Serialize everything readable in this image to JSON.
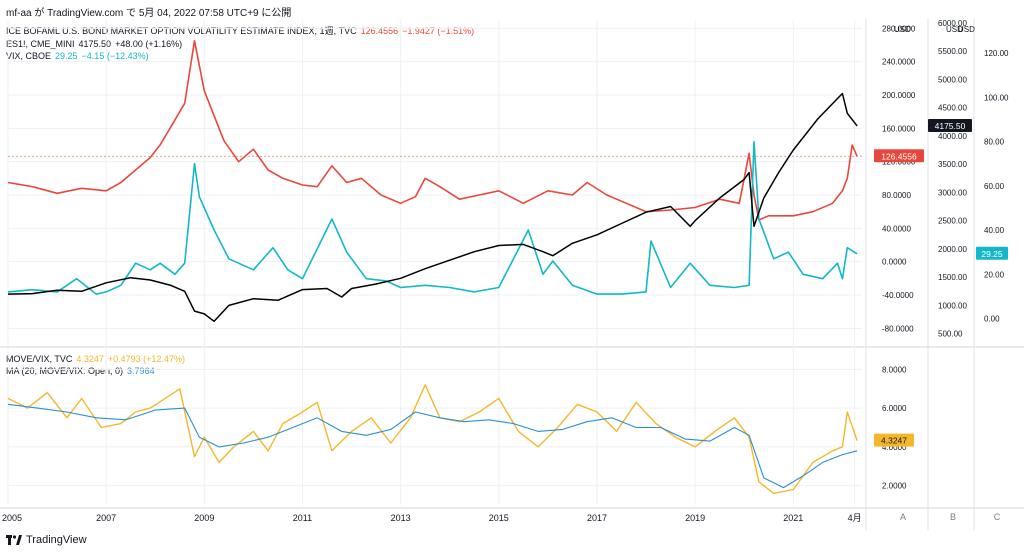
{
  "header": {
    "text": "mf-aa が TradingView.com で 5月 04, 2022 07:58 UTC+9 に公開"
  },
  "footer": {
    "brand": "TradingView"
  },
  "colors": {
    "move": "#e8483c",
    "es": "#000000",
    "vix": "#13b8c8",
    "ratio": "#f5b72a",
    "ma": "#2a8fd6",
    "grid": "#eef0f4",
    "axis": "#787b86"
  },
  "legend_top": [
    {
      "label": "ICE BOFAML U.S. BOND MARKET OPTION VOLATILITY ESTIMATE INDEX, 1週, TVC",
      "value": "126.4556",
      "change": "−1.9427 (−1.51%)",
      "color": "#e8483c"
    },
    {
      "label": "ES1!, CME_MINI",
      "value": "4175.50",
      "change": "+48.00 (+1.16%)",
      "color": "#131722"
    },
    {
      "label": "VIX, CBOE",
      "value": "29.25",
      "change": "−4.15 (−12.43%)",
      "color": "#13b8c8"
    }
  ],
  "legend_bottom": [
    {
      "label": "MOVE/VIX, TVC",
      "value": "4.3247",
      "change": "+0.4793 (+12.47%)",
      "color": "#f5b72a"
    },
    {
      "label": "MA (20, MOVE/VIX: Open, 0)",
      "value": "3.7964",
      "change": "",
      "color": "#2a8fd6"
    }
  ],
  "chart_data": [
    {
      "type": "line",
      "pane": "top",
      "x_ticks": [
        "2005",
        "2007",
        "2009",
        "2011",
        "2013",
        "2015",
        "2017",
        "2019",
        "2021",
        "4月"
      ],
      "scale_a": {
        "currency": "USD",
        "ticks": [
          "280.0000",
          "240.0000",
          "200.0000",
          "160.0000",
          "120.0000",
          "80.0000",
          "40.0000",
          "0.0000",
          "-40.0000",
          "-80.0000"
        ],
        "range": [
          -100,
          290
        ]
      },
      "scale_b": {
        "currency": "USD",
        "ticks": [
          "6000.00",
          "5500.00",
          "5000.00",
          "4500.00",
          "4000.00",
          "3500.00",
          "3000.00",
          "2500.00",
          "2000.00",
          "1500.00",
          "1000.00",
          "500.00"
        ],
        "range": [
          300,
          6050
        ]
      },
      "scale_c": {
        "currency": "USD",
        "ticks": [
          "120.00",
          "100.00",
          "80.00",
          "60.00",
          "40.00",
          "20.00",
          "0.00"
        ],
        "range": [
          -12,
          135
        ]
      },
      "price_labels": {
        "move": "126.4556",
        "es": "4175.50",
        "vix": "29.25"
      },
      "series": [
        {
          "name": "ICE BOFAML U.S. BOND MARKET OPTION VOLATILITY ESTIMATE INDEX",
          "scale": "a",
          "x": [
            2005.0,
            2005.5,
            2006.0,
            2006.5,
            2007.0,
            2007.3,
            2007.6,
            2007.9,
            2008.1,
            2008.3,
            2008.6,
            2008.8,
            2009.0,
            2009.2,
            2009.4,
            2009.7,
            2010.0,
            2010.3,
            2010.6,
            2011.0,
            2011.3,
            2011.6,
            2011.9,
            2012.2,
            2012.6,
            2013.0,
            2013.3,
            2013.5,
            2013.8,
            2014.2,
            2014.6,
            2015.0,
            2015.5,
            2016.0,
            2016.5,
            2016.8,
            2017.2,
            2017.6,
            2018.0,
            2018.5,
            2019.0,
            2019.5,
            2019.9,
            2020.1,
            2020.2,
            2020.3,
            2020.5,
            2020.8,
            2021.0,
            2021.4,
            2021.8,
            2022.0,
            2022.1,
            2022.2,
            2022.3
          ],
          "y": [
            95,
            90,
            82,
            88,
            85,
            95,
            110,
            125,
            140,
            160,
            190,
            265,
            205,
            175,
            145,
            120,
            135,
            110,
            100,
            92,
            90,
            115,
            95,
            100,
            80,
            70,
            78,
            100,
            90,
            75,
            80,
            85,
            70,
            85,
            80,
            95,
            80,
            70,
            60,
            62,
            65,
            75,
            70,
            130,
            80,
            50,
            55,
            55,
            55,
            60,
            70,
            85,
            100,
            140,
            126.4556
          ]
        },
        {
          "name": "ES1!, CME_MINI",
          "scale": "b",
          "x": [
            2005.0,
            2005.5,
            2006.0,
            2006.5,
            2007.0,
            2007.5,
            2007.9,
            2008.3,
            2008.6,
            2008.8,
            2009.0,
            2009.2,
            2009.5,
            2010.0,
            2010.5,
            2011.0,
            2011.5,
            2011.8,
            2012.0,
            2012.5,
            2013.0,
            2013.5,
            2014.0,
            2014.5,
            2015.0,
            2015.5,
            2015.9,
            2016.1,
            2016.5,
            2017.0,
            2017.5,
            2018.0,
            2018.5,
            2018.9,
            2019.0,
            2019.5,
            2020.0,
            2020.1,
            2020.2,
            2020.4,
            2020.7,
            2021.0,
            2021.5,
            2022.0,
            2022.1,
            2022.3
          ],
          "y": [
            1200,
            1210,
            1270,
            1250,
            1400,
            1490,
            1450,
            1360,
            1250,
            900,
            850,
            720,
            1000,
            1120,
            1090,
            1280,
            1300,
            1150,
            1300,
            1380,
            1480,
            1650,
            1800,
            1950,
            2060,
            2080,
            1950,
            1880,
            2100,
            2250,
            2450,
            2650,
            2750,
            2400,
            2500,
            2900,
            3230,
            3350,
            2400,
            2900,
            3350,
            3750,
            4300,
            4750,
            4400,
            4175.5
          ]
        },
        {
          "name": "VIX, CBOE",
          "scale": "c",
          "x": [
            2005.0,
            2005.5,
            2006.0,
            2006.4,
            2006.8,
            2007.0,
            2007.3,
            2007.6,
            2007.9,
            2008.1,
            2008.4,
            2008.6,
            2008.8,
            2008.9,
            2009.2,
            2009.5,
            2010.0,
            2010.4,
            2010.7,
            2011.0,
            2011.6,
            2011.9,
            2012.3,
            2012.7,
            2013.0,
            2013.5,
            2014.0,
            2014.5,
            2015.0,
            2015.6,
            2015.9,
            2016.1,
            2016.5,
            2017.0,
            2017.5,
            2018.0,
            2018.1,
            2018.5,
            2018.9,
            2019.3,
            2019.8,
            2020.1,
            2020.2,
            2020.3,
            2020.6,
            2020.9,
            2021.2,
            2021.6,
            2021.9,
            2022.0,
            2022.1,
            2022.3
          ],
          "y": [
            12,
            13,
            12,
            18,
            11,
            12,
            15,
            25,
            22,
            25,
            20,
            25,
            70,
            55,
            40,
            27,
            22,
            32,
            22,
            18,
            45,
            30,
            18,
            17,
            14,
            15,
            14,
            12,
            14,
            40,
            20,
            26,
            15,
            11,
            11,
            12,
            35,
            14,
            25,
            15,
            14,
            15,
            80,
            45,
            27,
            30,
            20,
            18,
            25,
            18,
            32,
            29.25
          ]
        }
      ]
    },
    {
      "type": "line",
      "pane": "bottom",
      "scale_a": {
        "ticks": [
          "8.0000",
          "6.0000",
          "4.0000",
          "2.0000"
        ],
        "range": [
          1.0,
          9.0
        ]
      },
      "price_label": "4.3247",
      "series": [
        {
          "name": "MOVE/VIX, TVC",
          "x": [
            2005.0,
            2005.4,
            2005.8,
            2006.2,
            2006.5,
            2006.9,
            2007.3,
            2007.6,
            2007.9,
            2008.2,
            2008.5,
            2008.8,
            2009.0,
            2009.3,
            2009.6,
            2010.0,
            2010.3,
            2010.6,
            2011.0,
            2011.3,
            2011.6,
            2012.0,
            2012.4,
            2012.8,
            2013.2,
            2013.5,
            2013.8,
            2014.2,
            2014.6,
            2015.0,
            2015.4,
            2015.8,
            2016.2,
            2016.6,
            2017.0,
            2017.4,
            2017.8,
            2018.2,
            2018.6,
            2019.0,
            2019.4,
            2019.8,
            2020.1,
            2020.3,
            2020.6,
            2021.0,
            2021.4,
            2021.8,
            2022.0,
            2022.1,
            2022.3
          ],
          "y": [
            6.5,
            6.0,
            6.8,
            5.5,
            6.5,
            5.0,
            5.2,
            5.8,
            6.0,
            6.5,
            7.0,
            3.5,
            4.5,
            3.2,
            4.0,
            4.8,
            3.8,
            5.2,
            5.8,
            6.3,
            3.8,
            4.8,
            5.5,
            4.2,
            5.5,
            7.2,
            5.5,
            5.3,
            5.8,
            6.5,
            4.8,
            4.0,
            5.0,
            6.2,
            5.8,
            4.8,
            6.3,
            5.2,
            4.5,
            4.0,
            4.8,
            5.5,
            4.5,
            2.2,
            1.6,
            1.8,
            3.2,
            3.8,
            4.0,
            5.8,
            4.3247
          ]
        },
        {
          "name": "MA (20, MOVE/VIX: Open, 0)",
          "x": [
            2005.0,
            2005.6,
            2006.2,
            2006.8,
            2007.4,
            2008.0,
            2008.6,
            2008.9,
            2009.3,
            2009.8,
            2010.3,
            2010.8,
            2011.3,
            2011.8,
            2012.3,
            2012.8,
            2013.3,
            2013.8,
            2014.3,
            2014.8,
            2015.3,
            2015.8,
            2016.3,
            2016.8,
            2017.3,
            2017.8,
            2018.3,
            2018.8,
            2019.3,
            2019.8,
            2020.1,
            2020.4,
            2020.8,
            2021.2,
            2021.6,
            2022.0,
            2022.3
          ],
          "y": [
            6.2,
            6.0,
            5.8,
            5.5,
            5.4,
            5.9,
            6.0,
            4.5,
            4.0,
            4.2,
            4.5,
            5.0,
            5.5,
            4.8,
            4.6,
            4.9,
            5.8,
            5.5,
            5.3,
            5.4,
            5.2,
            4.8,
            4.9,
            5.3,
            5.5,
            5.0,
            5.0,
            4.4,
            4.3,
            5.0,
            4.6,
            2.4,
            1.9,
            2.5,
            3.2,
            3.6,
            3.7964
          ]
        }
      ]
    }
  ]
}
